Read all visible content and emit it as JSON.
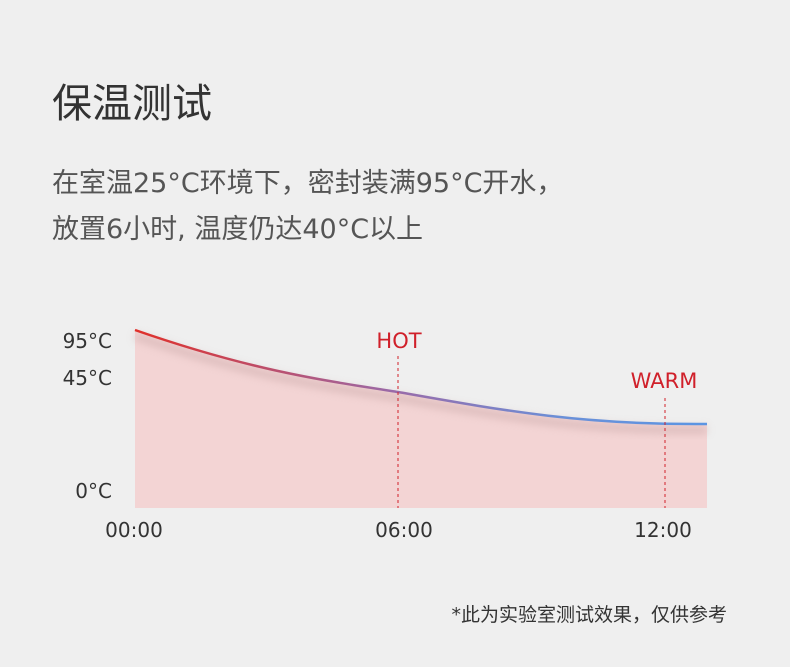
{
  "title": "保温测试",
  "description": [
    "在室温25°C环境下，密封装满95°C开水，",
    "放置6小时, 温度仍达40°C以上"
  ],
  "chart": {
    "y_labels": [
      "95°C",
      "45°C",
      "0°C"
    ],
    "x_labels": [
      "00:00",
      "06:00",
      "12:00"
    ],
    "markers": [
      "HOT",
      "WARM"
    ]
  },
  "footnote": "*此为实验室测试效果，仅供参考"
}
